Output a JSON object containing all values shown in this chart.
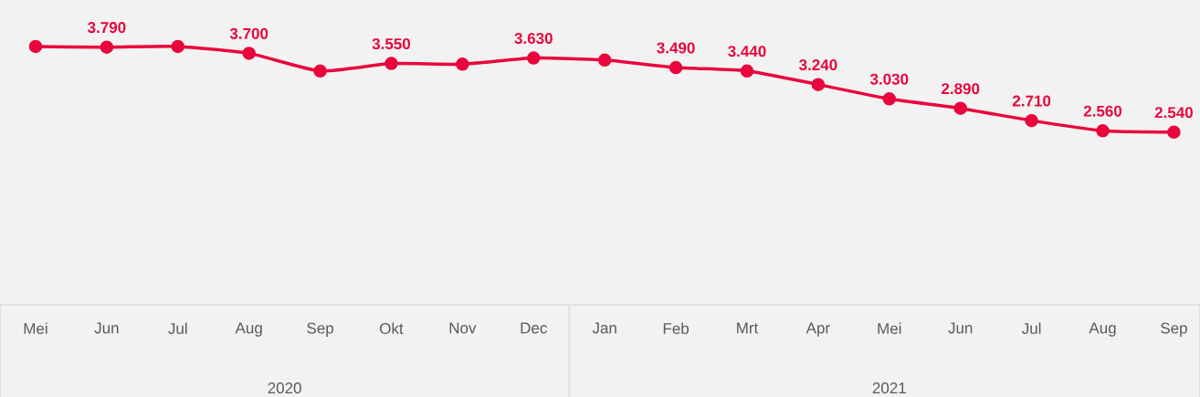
{
  "chart_data": {
    "type": "line",
    "x": [
      "2020-05",
      "2020-06",
      "2020-07",
      "2020-08",
      "2020-09",
      "2020-10",
      "2020-11",
      "2020-12",
      "2021-01",
      "2021-02",
      "2021-03",
      "2021-04",
      "2021-05",
      "2021-06",
      "2021-07",
      "2021-08",
      "2021-09"
    ],
    "xlim": [
      "2020-04-16",
      "2021-09-12"
    ],
    "xticks": [
      {
        "value": "2020-05",
        "label": "Mei"
      },
      {
        "value": "2020-06",
        "label": "Jun"
      },
      {
        "value": "2020-07",
        "label": "Jul"
      },
      {
        "value": "2020-08",
        "label": "Aug"
      },
      {
        "value": "2020-09",
        "label": "Sep"
      },
      {
        "value": "2020-10",
        "label": "Okt"
      },
      {
        "value": "2020-11",
        "label": "Nov"
      },
      {
        "value": "2020-12",
        "label": "Dec"
      },
      {
        "value": "2021-01",
        "label": "Jan"
      },
      {
        "value": "2021-02",
        "label": "Feb"
      },
      {
        "value": "2021-03",
        "label": "Mrt"
      },
      {
        "value": "2021-04",
        "label": "Apr"
      },
      {
        "value": "2021-05",
        "label": "Mei"
      },
      {
        "value": "2021-06",
        "label": "Jun"
      },
      {
        "value": "2021-07",
        "label": "Jul"
      },
      {
        "value": "2021-08",
        "label": "Aug"
      },
      {
        "value": "2021-09",
        "label": "Sep"
      }
    ],
    "series": [
      {
        "color": "#e8063c",
        "values": [
          3800,
          3790,
          3800,
          3700,
          3440,
          3550,
          3540,
          3630,
          3600,
          3490,
          3440,
          3240,
          3030,
          2890,
          2710,
          2560,
          2540
        ],
        "value_labels": [
          null,
          "3.790",
          null,
          "3.700",
          null,
          "3.550",
          null,
          "3.630",
          null,
          "3.490",
          "3.440",
          "3.240",
          "3.030",
          "2.890",
          "2.710",
          "2.560",
          "2.540"
        ]
      }
    ],
    "annotations": [
      "2020",
      "2021"
    ],
    "marker": "circle",
    "line_style": "solid",
    "grid": false
  }
}
